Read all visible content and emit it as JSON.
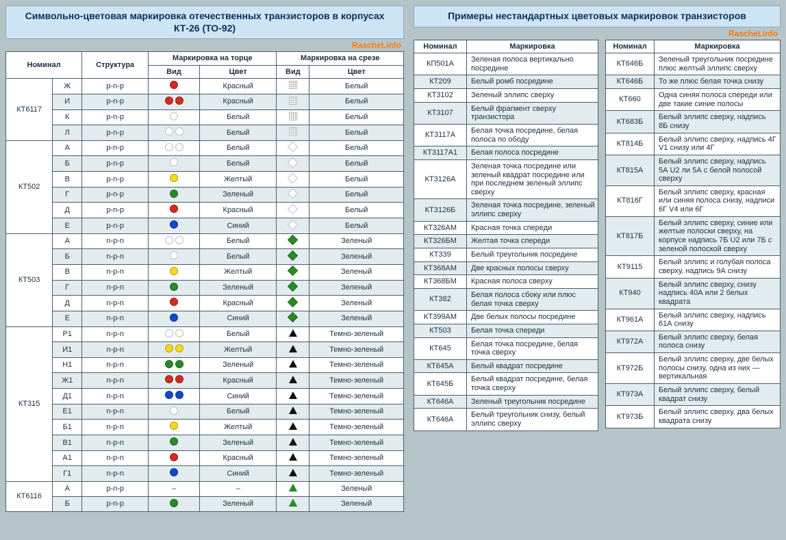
{
  "watermark": "Raschet.info",
  "colors": {
    "red": "#d42a1f",
    "white": "#ffffff",
    "yellow": "#f7d71a",
    "green": "#2a8a2a",
    "blue": "#1646c8",
    "darkgreen": "#0d4d1a",
    "black": "#111111"
  },
  "left": {
    "title": "Символьно-цветовая маркировка отечественных транзисторов в корпусах КТ-26 (ТО-92)",
    "headers": {
      "nominal": "Номинал",
      "struct": "Структура",
      "mark_end": "Маркировка на торце",
      "mark_cut": "Маркировка на срезе",
      "view": "Вид",
      "color": "Цвет"
    },
    "groups": [
      {
        "nom": "КТ6117",
        "rows": [
          {
            "sfx": "Ж",
            "str": "p-n-p",
            "end": {
              "shape": "dot",
              "count": 1,
              "color": "red"
            },
            "endc": "Красный",
            "cut": {
              "shape": "grid",
              "count": 1,
              "color": "white"
            },
            "cutc": "Белый"
          },
          {
            "sfx": "И",
            "str": "p-n-p",
            "end": {
              "shape": "dot",
              "count": 2,
              "color": "red"
            },
            "endc": "Красный",
            "cut": {
              "shape": "grid",
              "count": 1,
              "color": "white"
            },
            "cutc": "Белый"
          },
          {
            "sfx": "К",
            "str": "p-n-p",
            "end": {
              "shape": "dot",
              "count": 1,
              "color": "white"
            },
            "endc": "Белый",
            "cut": {
              "shape": "grid",
              "count": 1,
              "color": "white"
            },
            "cutc": "Белый"
          },
          {
            "sfx": "Л",
            "str": "p-n-p",
            "end": {
              "shape": "dot",
              "count": 2,
              "color": "white"
            },
            "endc": "Белый",
            "cut": {
              "shape": "grid",
              "count": 1,
              "color": "white"
            },
            "cutc": "Белый"
          }
        ]
      },
      {
        "nom": "КТ502",
        "rows": [
          {
            "sfx": "А",
            "str": "p-n-p",
            "end": {
              "shape": "dot",
              "count": 2,
              "color": "white"
            },
            "endc": "Белый",
            "cut": {
              "shape": "dia",
              "count": 1,
              "color": "white"
            },
            "cutc": "Белый"
          },
          {
            "sfx": "Б",
            "str": "p-n-p",
            "end": {
              "shape": "dot",
              "count": 1,
              "color": "white"
            },
            "endc": "Белый",
            "cut": {
              "shape": "dia",
              "count": 1,
              "color": "white"
            },
            "cutc": "Белый"
          },
          {
            "sfx": "В",
            "str": "p-n-p",
            "end": {
              "shape": "dot",
              "count": 1,
              "color": "yellow"
            },
            "endc": "Желтый",
            "cut": {
              "shape": "dia",
              "count": 1,
              "color": "white"
            },
            "cutc": "Белый"
          },
          {
            "sfx": "Г",
            "str": "p-n-p",
            "end": {
              "shape": "dot",
              "count": 1,
              "color": "green"
            },
            "endc": "Зеленый",
            "cut": {
              "shape": "dia",
              "count": 1,
              "color": "white"
            },
            "cutc": "Белый"
          },
          {
            "sfx": "Д",
            "str": "p-n-p",
            "end": {
              "shape": "dot",
              "count": 1,
              "color": "red"
            },
            "endc": "Красный",
            "cut": {
              "shape": "dia",
              "count": 1,
              "color": "white"
            },
            "cutc": "Белый"
          },
          {
            "sfx": "Е",
            "str": "p-n-p",
            "end": {
              "shape": "dot",
              "count": 1,
              "color": "blue"
            },
            "endc": "Синий",
            "cut": {
              "shape": "dia",
              "count": 1,
              "color": "white"
            },
            "cutc": "Белый"
          }
        ]
      },
      {
        "nom": "КТ503",
        "rows": [
          {
            "sfx": "А",
            "str": "n-p-n",
            "end": {
              "shape": "dot",
              "count": 2,
              "color": "white"
            },
            "endc": "Белый",
            "cut": {
              "shape": "dia",
              "count": 1,
              "color": "green"
            },
            "cutc": "Зеленый"
          },
          {
            "sfx": "Б",
            "str": "n-p-n",
            "end": {
              "shape": "dot",
              "count": 1,
              "color": "white"
            },
            "endc": "Белый",
            "cut": {
              "shape": "dia",
              "count": 1,
              "color": "green"
            },
            "cutc": "Зеленый"
          },
          {
            "sfx": "В",
            "str": "n-p-n",
            "end": {
              "shape": "dot",
              "count": 1,
              "color": "yellow"
            },
            "endc": "Желтый",
            "cut": {
              "shape": "dia",
              "count": 1,
              "color": "green"
            },
            "cutc": "Зеленый"
          },
          {
            "sfx": "Г",
            "str": "n-p-n",
            "end": {
              "shape": "dot",
              "count": 1,
              "color": "green"
            },
            "endc": "Зеленый",
            "cut": {
              "shape": "dia",
              "count": 1,
              "color": "green"
            },
            "cutc": "Зеленый"
          },
          {
            "sfx": "Д",
            "str": "n-p-n",
            "end": {
              "shape": "dot",
              "count": 1,
              "color": "red"
            },
            "endc": "Красный",
            "cut": {
              "shape": "dia",
              "count": 1,
              "color": "green"
            },
            "cutc": "Зеленый"
          },
          {
            "sfx": "Е",
            "str": "n-p-n",
            "end": {
              "shape": "dot",
              "count": 1,
              "color": "blue"
            },
            "endc": "Синий",
            "cut": {
              "shape": "dia",
              "count": 1,
              "color": "green"
            },
            "cutc": "Зеленый"
          }
        ]
      },
      {
        "nom": "КТ315",
        "rows": [
          {
            "sfx": "Р1",
            "str": "n-p-n",
            "end": {
              "shape": "dot",
              "count": 2,
              "color": "white"
            },
            "endc": "Белый",
            "cut": {
              "shape": "tri",
              "count": 1,
              "color": "black"
            },
            "cutc": "Темно-зеленый"
          },
          {
            "sfx": "И1",
            "str": "n-p-n",
            "end": {
              "shape": "dot",
              "count": 2,
              "color": "yellow"
            },
            "endc": "Желтый",
            "cut": {
              "shape": "tri",
              "count": 1,
              "color": "black"
            },
            "cutc": "Темно-зеленый"
          },
          {
            "sfx": "Н1",
            "str": "n-p-n",
            "end": {
              "shape": "dot",
              "count": 2,
              "color": "green"
            },
            "endc": "Зеленый",
            "cut": {
              "shape": "tri",
              "count": 1,
              "color": "black"
            },
            "cutc": "Темно-зеленый"
          },
          {
            "sfx": "Ж1",
            "str": "n-p-n",
            "end": {
              "shape": "dot",
              "count": 2,
              "color": "red"
            },
            "endc": "Красный",
            "cut": {
              "shape": "tri",
              "count": 1,
              "color": "black"
            },
            "cutc": "Темно-зеленый"
          },
          {
            "sfx": "Д1",
            "str": "n-p-n",
            "end": {
              "shape": "dot",
              "count": 2,
              "color": "blue"
            },
            "endc": "Синий",
            "cut": {
              "shape": "tri",
              "count": 1,
              "color": "black"
            },
            "cutc": "Темно-зеленый"
          },
          {
            "sfx": "Е1",
            "str": "n-p-n",
            "end": {
              "shape": "dot",
              "count": 1,
              "color": "white"
            },
            "endc": "Белый",
            "cut": {
              "shape": "tri",
              "count": 1,
              "color": "black"
            },
            "cutc": "Темно-зеленый"
          },
          {
            "sfx": "Б1",
            "str": "n-p-n",
            "end": {
              "shape": "dot",
              "count": 1,
              "color": "yellow"
            },
            "endc": "Желтый",
            "cut": {
              "shape": "tri",
              "count": 1,
              "color": "black"
            },
            "cutc": "Темно-зеленый"
          },
          {
            "sfx": "В1",
            "str": "n-p-n",
            "end": {
              "shape": "dot",
              "count": 1,
              "color": "green"
            },
            "endc": "Зеленый",
            "cut": {
              "shape": "tri",
              "count": 1,
              "color": "black"
            },
            "cutc": "Темно-зеленый"
          },
          {
            "sfx": "А1",
            "str": "n-p-n",
            "end": {
              "shape": "dot",
              "count": 1,
              "color": "red"
            },
            "endc": "Красный",
            "cut": {
              "shape": "tri",
              "count": 1,
              "color": "black"
            },
            "cutc": "Темно-зеленый"
          },
          {
            "sfx": "Г1",
            "str": "n-p-n",
            "end": {
              "shape": "dot",
              "count": 1,
              "color": "blue"
            },
            "endc": "Синий",
            "cut": {
              "shape": "tri",
              "count": 1,
              "color": "black"
            },
            "cutc": "Темно-зеленый"
          }
        ]
      },
      {
        "nom": "КТ6116",
        "rows": [
          {
            "sfx": "А",
            "str": "p-n-p",
            "end": {
              "shape": "dash",
              "count": 1,
              "color": "black"
            },
            "endc": "–",
            "cut": {
              "shape": "triout",
              "count": 1,
              "color": "green"
            },
            "cutc": "Зеленый"
          },
          {
            "sfx": "Б",
            "str": "p-n-p",
            "end": {
              "shape": "dot",
              "count": 1,
              "color": "green"
            },
            "endc": "Зеленый",
            "cut": {
              "shape": "triout",
              "count": 1,
              "color": "green"
            },
            "cutc": "Зеленый"
          }
        ]
      }
    ]
  },
  "right": {
    "title": "Примеры нестандартных цветовых маркировок транзисторов",
    "headers": {
      "nominal": "Номинал",
      "marking": "Маркировка"
    },
    "col1": [
      {
        "n": "КП501А",
        "m": "Зеленая полоса вертикально посредине"
      },
      {
        "n": "КТ209",
        "m": "Белый ромб посредине"
      },
      {
        "n": "КТ3102",
        "m": "Зеленый эллипс сверху"
      },
      {
        "n": "КТ3107",
        "m": "Белый фрагмент сверху транзистора"
      },
      {
        "n": "КТ3117А",
        "m": "Белая точка посредине, белая полоса по ободу"
      },
      {
        "n": "КТ3117А1",
        "m": "Белая полоса посредине"
      },
      {
        "n": "КТ3126А",
        "m": "Зеленая точка посредине или зеленый квадрат посредине или при последнем зеленый эллипс сверху"
      },
      {
        "n": "КТ3126Б",
        "m": "Зеленая точка посредине, зеленый эллипс сверху"
      },
      {
        "n": "КТ326АМ",
        "m": "Красная точка спереди"
      },
      {
        "n": "КТ326БМ",
        "m": "Желтая точка спереди"
      },
      {
        "n": "КТ339",
        "m": "Белый треугольник посредине"
      },
      {
        "n": "КТ368АМ",
        "m": "Две красных полосы сверху"
      },
      {
        "n": "КТ368БМ",
        "m": "Красная полоса сверху"
      },
      {
        "n": "КТ382",
        "m": "Белая полоса сбоку или плюс белая точка сверху"
      },
      {
        "n": "КТ399АМ",
        "m": "Две белых полосы посредине"
      },
      {
        "n": "КТ503",
        "m": "Белая точка спереди"
      },
      {
        "n": "КТ645",
        "m": "Белая точка посредине, белая точка сверху"
      },
      {
        "n": "КТ645А",
        "m": "Белый квадрат посредине"
      },
      {
        "n": "КТ645Б",
        "m": "Белый квадрат посредине, белая точка сверху"
      },
      {
        "n": "КТ646А",
        "m": "Зеленый треугольник посредине"
      },
      {
        "n": "КТ646А",
        "m": "Белый треугольник снизу, белый эллипс сверху"
      }
    ],
    "col2": [
      {
        "n": "КТ646Б",
        "m": "Зеленый треугольник посредине плюс желтый эллипс сверху"
      },
      {
        "n": "КТ646Б",
        "m": "То же плюс белая точка снизу"
      },
      {
        "n": "КТ660",
        "m": "Одна синяя полоса спереди или две такие синие полосы"
      },
      {
        "n": "КТ683Б",
        "m": "Белый эллипс сверху, надпись 8Б снизу"
      },
      {
        "n": "КТ814Б",
        "m": "Белый эллипс сверху, надпись 4Г V1 снизу или 4Г"
      },
      {
        "n": "КТ815А",
        "m": "Белый эллипс сверху, надпись 5А U2 ли 5А с белой полосой сверху"
      },
      {
        "n": "КТ816Г",
        "m": "Белый эллипс сверху, красная или синяя полоса снизу, надписи 6Г V4 или 6Г"
      },
      {
        "n": "КТ817Б",
        "m": "Белый эллипс сверху, синие или желтые полоски сверху, на корпусе надпись 7Б U2 или 7Б с зеленой полоской сверху"
      },
      {
        "n": "КТ9115",
        "m": "Белый эллипс и голубая полоса сверху, надпись 9А снизу"
      },
      {
        "n": "КТ940",
        "m": "Белый эллипс сверху, снизу надпись 40А или 2 белых квадрата"
      },
      {
        "n": "КТ961А",
        "m": "Белый эллипс сверху, надпись 61А снизу"
      },
      {
        "n": "КТ972А",
        "m": "Белый эллипс сверху, белая полоса снизу"
      },
      {
        "n": "КТ972Б",
        "m": "Белый эллипс сверху, две белых полосы снизу, одна из них — вертикальная"
      },
      {
        "n": "КТ973А",
        "m": "Белый эллипс сверху, белый квадрат снизу"
      },
      {
        "n": "КТ973Б",
        "m": "Белый эллипс сверху, два белых квадрата снизу"
      }
    ]
  }
}
